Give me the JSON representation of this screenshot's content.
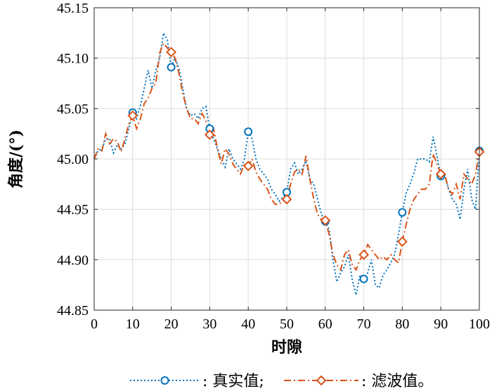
{
  "chart_data": {
    "type": "line",
    "xlabel": "时隙",
    "ylabel": "角度/(°)",
    "xlim": [
      0,
      100
    ],
    "ylim": [
      44.85,
      45.15
    ],
    "xticks": [
      "0",
      "10",
      "20",
      "30",
      "40",
      "50",
      "60",
      "70",
      "80",
      "90",
      "100"
    ],
    "yticks": [
      "45.15",
      "45.10",
      "45.05",
      "45.00",
      "44.95",
      "44.90",
      "44.85"
    ],
    "grid": true,
    "legend_position": "bottom",
    "series": [
      {
        "name": "真实值;",
        "color": "#0072BD",
        "line_style": "dotted",
        "marker": "circle",
        "marker_x": [
          10,
          20,
          30,
          40,
          50,
          60,
          70,
          80,
          90,
          100
        ],
        "x": [
          0,
          1,
          2,
          3,
          4,
          5,
          6,
          7,
          8,
          9,
          10,
          11,
          12,
          13,
          14,
          15,
          16,
          17,
          18,
          19,
          20,
          21,
          22,
          23,
          24,
          25,
          26,
          27,
          28,
          29,
          30,
          31,
          32,
          33,
          34,
          35,
          36,
          37,
          38,
          39,
          40,
          41,
          42,
          43,
          44,
          45,
          46,
          47,
          48,
          49,
          50,
          51,
          52,
          53,
          54,
          55,
          56,
          57,
          58,
          59,
          60,
          61,
          62,
          63,
          64,
          65,
          66,
          67,
          68,
          69,
          70,
          71,
          72,
          73,
          74,
          75,
          76,
          77,
          78,
          79,
          80,
          81,
          82,
          83,
          84,
          85,
          86,
          87,
          88,
          89,
          90,
          91,
          92,
          93,
          94,
          95,
          96,
          97,
          98,
          99,
          100
        ],
        "values": [
          45.0,
          45.008,
          45.01,
          45.02,
          45.02,
          45.006,
          45.014,
          45.01,
          45.015,
          45.03,
          45.046,
          45.04,
          45.053,
          45.07,
          45.088,
          45.07,
          45.088,
          45.1,
          45.125,
          45.118,
          45.091,
          45.1,
          45.09,
          45.07,
          45.05,
          45.043,
          45.045,
          45.04,
          45.05,
          45.052,
          45.03,
          45.02,
          45.01,
          45.0,
          44.992,
          45.01,
          45.0,
          44.995,
          44.99,
          45.0,
          45.027,
          45.02,
          45.0,
          44.99,
          44.985,
          44.98,
          44.97,
          44.965,
          44.958,
          44.962,
          44.967,
          44.99,
          44.996,
          44.985,
          44.99,
          44.998,
          44.98,
          44.975,
          44.96,
          44.945,
          44.938,
          44.93,
          44.9,
          44.878,
          44.887,
          44.893,
          44.905,
          44.88,
          44.865,
          44.885,
          44.881,
          44.887,
          44.9,
          44.875,
          44.872,
          44.885,
          44.89,
          44.897,
          44.905,
          44.925,
          44.947,
          44.966,
          44.975,
          44.986,
          45.0,
          45.0,
          45.0,
          44.997,
          45.022,
          45.003,
          44.983,
          44.985,
          44.97,
          44.96,
          44.955,
          44.94,
          44.97,
          44.99,
          44.96,
          44.95,
          45.008
        ]
      },
      {
        "name": "滤波值。",
        "color": "#D95319",
        "line_style": "dashdot",
        "marker": "diamond",
        "marker_x": [
          10,
          20,
          30,
          40,
          50,
          60,
          70,
          80,
          90,
          100
        ],
        "x": [
          0,
          1,
          2,
          3,
          4,
          5,
          6,
          7,
          8,
          9,
          10,
          11,
          12,
          13,
          14,
          15,
          16,
          17,
          18,
          19,
          20,
          21,
          22,
          23,
          24,
          25,
          26,
          27,
          28,
          29,
          30,
          31,
          32,
          33,
          34,
          35,
          36,
          37,
          38,
          39,
          40,
          41,
          42,
          43,
          44,
          45,
          46,
          47,
          48,
          49,
          50,
          51,
          52,
          53,
          54,
          55,
          56,
          57,
          58,
          59,
          60,
          61,
          62,
          63,
          64,
          65,
          66,
          67,
          68,
          69,
          70,
          71,
          72,
          73,
          74,
          75,
          76,
          77,
          78,
          79,
          80,
          81,
          82,
          83,
          84,
          85,
          86,
          87,
          88,
          89,
          90,
          91,
          92,
          93,
          94,
          95,
          96,
          97,
          98,
          99,
          100
        ],
        "values": [
          45.0,
          45.01,
          45.008,
          45.025,
          45.015,
          45.02,
          45.017,
          45.007,
          45.02,
          45.035,
          45.043,
          45.03,
          45.04,
          45.055,
          45.06,
          45.07,
          45.075,
          45.105,
          45.115,
          45.11,
          45.106,
          45.1,
          45.085,
          45.065,
          45.05,
          45.04,
          45.04,
          45.035,
          45.045,
          45.038,
          45.024,
          45.03,
          45.01,
          44.995,
          45.01,
          45.005,
          44.995,
          44.99,
          44.985,
          44.995,
          44.993,
          45.0,
          44.987,
          44.98,
          44.975,
          44.97,
          44.96,
          44.955,
          44.955,
          44.958,
          44.96,
          44.975,
          44.987,
          44.99,
          44.985,
          45.003,
          44.98,
          44.96,
          44.945,
          44.94,
          44.939,
          44.925,
          44.905,
          44.895,
          44.89,
          44.905,
          44.91,
          44.895,
          44.89,
          44.9,
          44.905,
          44.915,
          44.91,
          44.905,
          44.9,
          44.903,
          44.9,
          44.905,
          44.9,
          44.897,
          44.918,
          44.935,
          44.95,
          44.96,
          44.965,
          44.97,
          44.97,
          44.975,
          45.005,
          44.995,
          44.985,
          44.985,
          44.97,
          44.965,
          44.975,
          44.96,
          44.985,
          44.98,
          44.975,
          44.985,
          45.007
        ]
      }
    ]
  }
}
